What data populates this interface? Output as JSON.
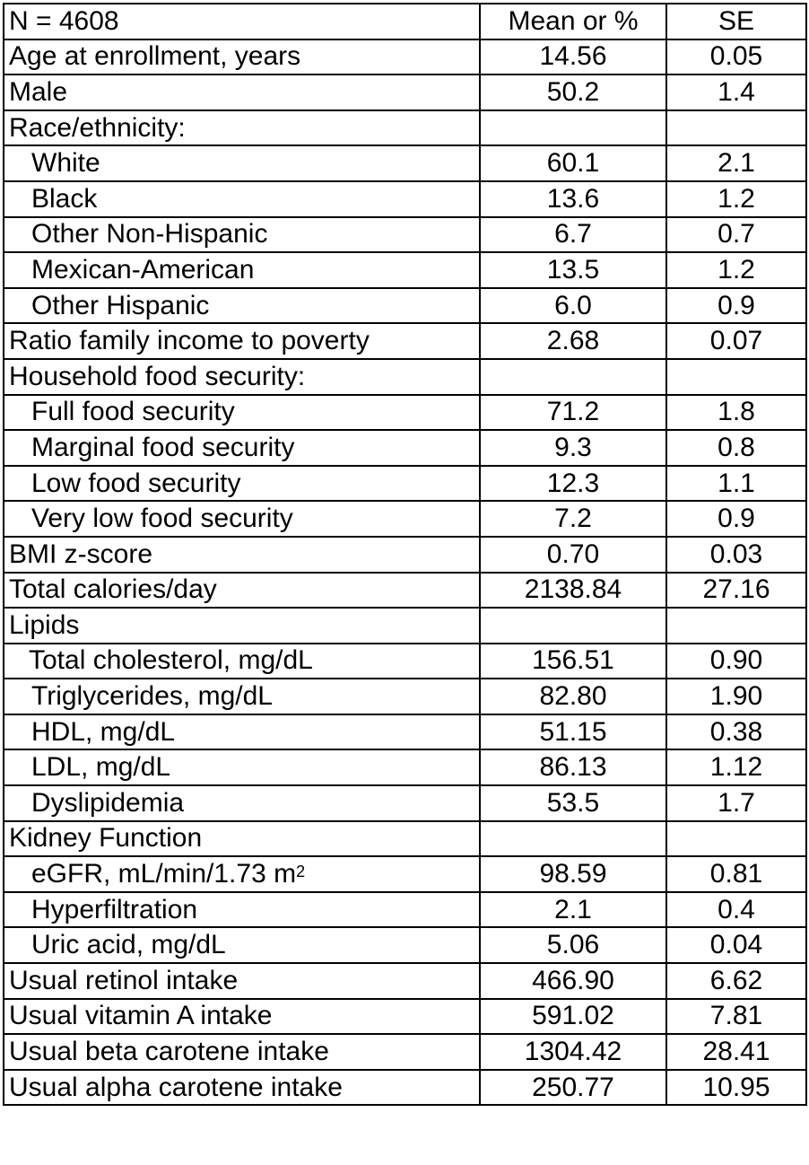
{
  "header": {
    "label": "N = 4608",
    "mean": "Mean or %",
    "se": "SE"
  },
  "rows": [
    {
      "label": "Age at enrollment, years",
      "mean": "14.56",
      "se": "0.05",
      "indent": "none"
    },
    {
      "label": "Male",
      "mean": "50.2",
      "se": "1.4",
      "indent": "none"
    },
    {
      "label": "Race/ethnicity:",
      "mean": "",
      "se": "",
      "indent": "none"
    },
    {
      "label": "White",
      "mean": "60.1",
      "se": "2.1",
      "indent": "yes"
    },
    {
      "label": "Black",
      "mean": "13.6",
      "se": "1.2",
      "indent": "yes"
    },
    {
      "label": "Other Non-Hispanic",
      "mean": "6.7",
      "se": "0.7",
      "indent": "yes"
    },
    {
      "label": "Mexican-American",
      "mean": "13.5",
      "se": "1.2",
      "indent": "yes"
    },
    {
      "label": "Other Hispanic",
      "mean": "6.0",
      "se": "0.9",
      "indent": "yes"
    },
    {
      "label": "Ratio family income to poverty",
      "mean": "2.68",
      "se": "0.07",
      "indent": "none"
    },
    {
      "label": "Household food security:",
      "mean": "",
      "se": "",
      "indent": "none"
    },
    {
      "label": "Full food security",
      "mean": "71.2",
      "se": "1.8",
      "indent": "yes"
    },
    {
      "label": "Marginal food security",
      "mean": "9.3",
      "se": "0.8",
      "indent": "yes"
    },
    {
      "label": "Low food security",
      "mean": "12.3",
      "se": "1.1",
      "indent": "yes"
    },
    {
      "label": "Very low food security",
      "mean": "7.2",
      "se": "0.9",
      "indent": "yes"
    },
    {
      "label": "BMI z-score",
      "mean": "0.70",
      "se": "0.03",
      "indent": "none"
    },
    {
      "label": "Total calories/day",
      "mean": "2138.84",
      "se": "27.16",
      "indent": "none"
    },
    {
      "label": "Lipids",
      "mean": "",
      "se": "",
      "indent": "none"
    },
    {
      "label": "Total cholesterol, mg/dL",
      "mean": "156.51",
      "se": "0.90",
      "indent": "small"
    },
    {
      "label": "Triglycerides, mg/dL",
      "mean": "82.80",
      "se": "1.90",
      "indent": "yes"
    },
    {
      "label": "HDL, mg/dL",
      "mean": "51.15",
      "se": "0.38",
      "indent": "yes"
    },
    {
      "label": "LDL, mg/dL",
      "mean": "86.13",
      "se": "1.12",
      "indent": "yes"
    },
    {
      "label": "Dyslipidemia",
      "mean": "53.5",
      "se": "1.7",
      "indent": "yes"
    },
    {
      "label": "Kidney Function",
      "mean": "",
      "se": "",
      "indent": "none"
    },
    {
      "label": "eGFR, mL/min/1.73 m",
      "label_sup": "2",
      "mean": "98.59",
      "se": "0.81",
      "indent": "yes"
    },
    {
      "label": "Hyperfiltration",
      "mean": "2.1",
      "se": "0.4",
      "indent": "yes"
    },
    {
      "label": "Uric acid, mg/dL",
      "mean": "5.06",
      "se": "0.04",
      "indent": "yes"
    },
    {
      "label": "Usual retinol intake",
      "mean": "466.90",
      "se": "6.62",
      "indent": "none"
    },
    {
      "label": "Usual vitamin A intake",
      "mean": "591.02",
      "se": "7.81",
      "indent": "none"
    },
    {
      "label": "Usual beta carotene intake",
      "mean": "1304.42",
      "se": "28.41",
      "indent": "none"
    },
    {
      "label": "Usual alpha carotene intake",
      "mean": "250.77",
      "se": "10.95",
      "indent": "none"
    }
  ]
}
